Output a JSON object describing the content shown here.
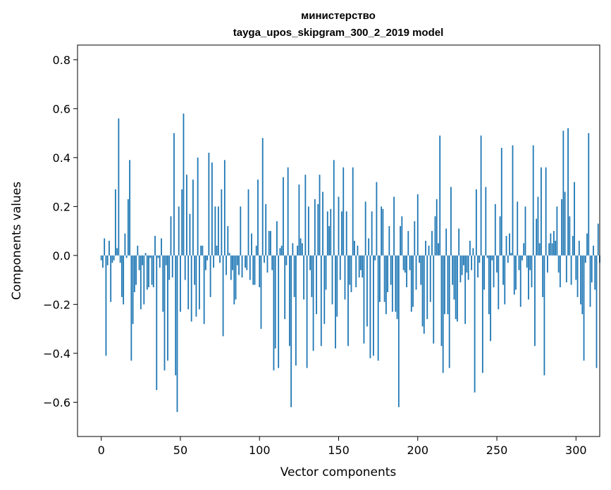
{
  "chart_data": {
    "type": "bar",
    "title_lines": [
      "министерство",
      "tayga_upos_skipgram_300_2_2019 model"
    ],
    "xlabel": "Vector components",
    "ylabel": "Components values",
    "x_ticks": [
      0,
      50,
      100,
      150,
      200,
      250,
      300
    ],
    "x_tick_labels": [
      "0",
      "50",
      "100",
      "150",
      "200",
      "250",
      "300"
    ],
    "y_ticks": [
      -0.6,
      -0.4,
      -0.2,
      0.0,
      0.2,
      0.4,
      0.6,
      0.8
    ],
    "y_tick_labels": [
      "−0.6",
      "−0.4",
      "−0.2",
      "0.0",
      "0.2",
      "0.4",
      "0.6",
      "0.8"
    ],
    "xlim": [
      -15,
      315
    ],
    "ylim": [
      -0.74,
      0.86
    ],
    "grid": false,
    "bar_color": "#1f77b4",
    "series": [
      {
        "values": [
          -0.02,
          -0.05,
          0.07,
          -0.41,
          -0.04,
          0.06,
          -0.19,
          -0.03,
          -0.02,
          0.27,
          0.03,
          0.56,
          -0.03,
          -0.17,
          -0.2,
          0.09,
          -0.01,
          0.23,
          0.39,
          -0.43,
          -0.28,
          -0.15,
          -0.12,
          0.04,
          -0.06,
          -0.22,
          -0.04,
          -0.2,
          0.01,
          -0.14,
          -0.13,
          -0.01,
          -0.12,
          -0.13,
          0.08,
          -0.55,
          -0.01,
          -0.05,
          0.07,
          -0.23,
          -0.47,
          -0.04,
          -0.43,
          -0.1,
          0.16,
          -0.09,
          0.5,
          -0.49,
          -0.64,
          0.2,
          -0.23,
          0.27,
          0.58,
          -0.1,
          0.33,
          -0.22,
          0.17,
          -0.27,
          0.31,
          -0.12,
          -0.25,
          0.4,
          -0.22,
          0.04,
          0.04,
          -0.28,
          -0.06,
          -0.02,
          0.42,
          -0.17,
          0.38,
          -0.05,
          0.2,
          0.04,
          0.2,
          -0.03,
          0.27,
          -0.33,
          0.39,
          -0.08,
          0.12,
          0.01,
          -0.1,
          -0.06,
          -0.2,
          -0.18,
          -0.04,
          -0.08,
          0.2,
          -0.09,
          0.0,
          -0.05,
          -0.06,
          0.27,
          -0.1,
          0.09,
          -0.12,
          -0.12,
          0.04,
          0.31,
          -0.13,
          -0.3,
          0.48,
          -0.03,
          0.21,
          -0.07,
          0.1,
          0.1,
          -0.06,
          -0.47,
          -0.38,
          0.14,
          -0.46,
          0.03,
          0.04,
          0.32,
          -0.26,
          -0.04,
          0.36,
          -0.37,
          -0.62,
          0.05,
          -0.17,
          -0.45,
          0.04,
          0.29,
          0.07,
          0.05,
          -0.18,
          0.33,
          -0.46,
          0.2,
          -0.06,
          -0.17,
          -0.39,
          0.23,
          -0.24,
          0.21,
          0.33,
          -0.37,
          0.26,
          -0.28,
          -0.14,
          0.18,
          0.12,
          0.19,
          -0.2,
          0.39,
          -0.38,
          -0.25,
          0.24,
          -0.1,
          0.18,
          0.36,
          -0.18,
          0.18,
          -0.37,
          -0.12,
          -0.15,
          0.36,
          0.06,
          -0.13,
          0.04,
          -0.09,
          -0.06,
          -0.09,
          -0.36,
          0.22,
          -0.29,
          0.07,
          -0.42,
          0.18,
          -0.41,
          -0.02,
          0.3,
          -0.43,
          -0.19,
          0.2,
          0.19,
          -0.19,
          -0.24,
          -0.15,
          0.12,
          -0.12,
          -0.23,
          0.24,
          -0.23,
          -0.26,
          -0.62,
          0.12,
          0.16,
          -0.06,
          -0.07,
          -0.13,
          0.1,
          -0.06,
          -0.23,
          -0.21,
          0.14,
          -0.14,
          0.25,
          -0.03,
          -0.12,
          -0.29,
          -0.32,
          0.06,
          -0.26,
          0.04,
          -0.19,
          0.1,
          -0.36,
          0.16,
          0.23,
          0.05,
          0.49,
          -0.37,
          -0.48,
          -0.24,
          0.11,
          -0.24,
          -0.46,
          0.28,
          -0.12,
          -0.18,
          -0.26,
          -0.27,
          0.11,
          -0.11,
          -0.08,
          -0.04,
          -0.28,
          -0.07,
          -0.1,
          0.06,
          -0.06,
          0.03,
          -0.56,
          0.27,
          -0.09,
          -0.03,
          0.49,
          -0.48,
          -0.14,
          0.28,
          -0.01,
          -0.24,
          -0.35,
          -0.02,
          -0.13,
          0.21,
          -0.07,
          -0.22,
          0.16,
          0.44,
          -0.12,
          -0.2,
          0.08,
          -0.03,
          0.09,
          0.01,
          0.45,
          -0.16,
          -0.14,
          0.22,
          -0.06,
          -0.21,
          -0.02,
          0.05,
          0.2,
          -0.05,
          -0.18,
          -0.06,
          -0.13,
          0.45,
          -0.37,
          0.15,
          0.24,
          0.05,
          0.36,
          -0.17,
          -0.49,
          0.36,
          -0.07,
          0.05,
          0.09,
          0.05,
          0.1,
          0.06,
          0.2,
          -0.07,
          -0.13,
          0.23,
          0.51,
          0.26,
          -0.11,
          0.52,
          0.16,
          -0.12,
          0.08,
          0.3,
          -0.1,
          -0.17,
          0.06,
          -0.2,
          -0.24,
          -0.43,
          -0.03,
          0.09,
          0.5,
          -0.21,
          -0.11,
          0.04,
          -0.14,
          -0.46,
          0.13,
          -0.03
        ]
      }
    ]
  }
}
